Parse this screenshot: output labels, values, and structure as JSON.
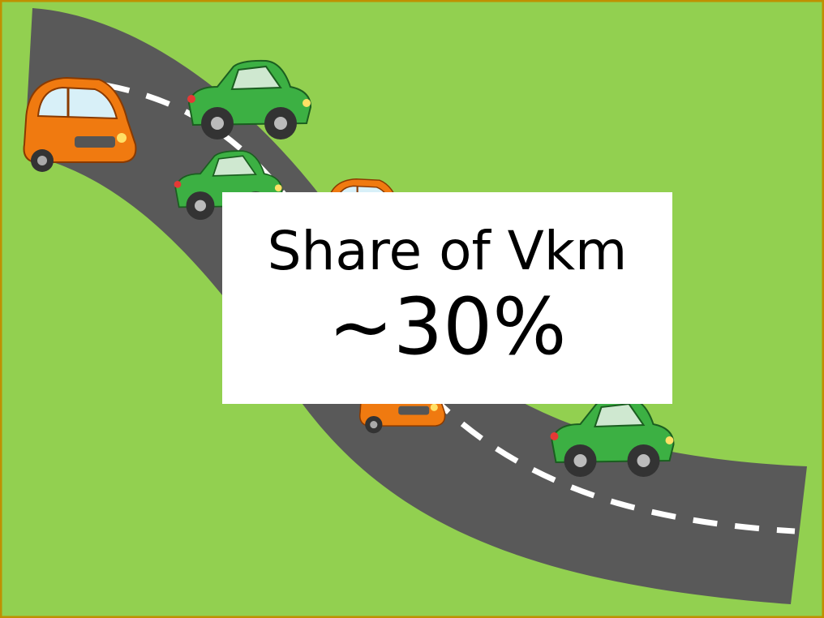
{
  "label": {
    "title": "Share of Vkm",
    "value": "~30%"
  }
}
